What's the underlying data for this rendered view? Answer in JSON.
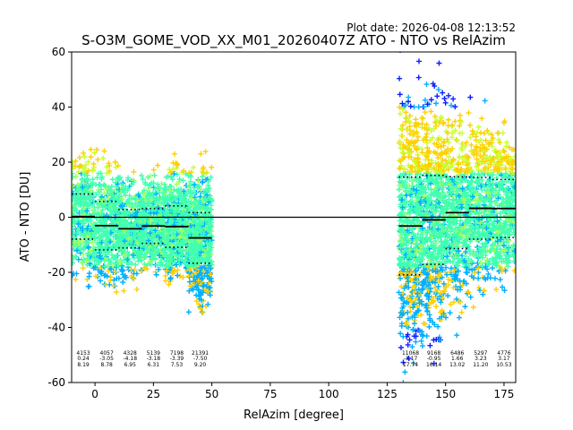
{
  "plot_date_label": "Plot date: 2026-04-08 12:13:52",
  "chart_data": {
    "type": "scatter",
    "title": "S-O3M_GOME_VOD_XX_M01_20260407Z ATO - NTO vs RelAzim",
    "xlabel": "RelAzim [degree]",
    "ylabel": "ATO - NTO [DU]",
    "xlim": [
      -10,
      180
    ],
    "ylim": [
      -60,
      60
    ],
    "xticks": [
      0,
      25,
      50,
      75,
      100,
      125,
      150,
      175
    ],
    "yticks": [
      -60,
      -40,
      -20,
      0,
      20,
      40,
      60
    ],
    "zero_line": 0,
    "grid": false,
    "marker": "+",
    "colormap": "jet",
    "bins": [
      {
        "range": [
          -10,
          0
        ],
        "count": "4153",
        "mean": "0.24",
        "std": "8.19",
        "mean_value": 0.24,
        "std_value": 8.19
      },
      {
        "range": [
          0,
          10
        ],
        "count": "4057",
        "mean": "-3.05",
        "std": "8.78",
        "mean_value": -3.05,
        "std_value": 8.78
      },
      {
        "range": [
          10,
          20
        ],
        "count": "4328",
        "mean": "-4.18",
        "std": "6.95",
        "mean_value": -4.18,
        "std_value": 6.95
      },
      {
        "range": [
          20,
          30
        ],
        "count": "5139",
        "mean": "-3.18",
        "std": "6.31",
        "mean_value": -3.18,
        "std_value": 6.31
      },
      {
        "range": [
          30,
          40
        ],
        "count": "7198",
        "mean": "-3.39",
        "std": "7.53",
        "mean_value": -3.39,
        "std_value": 7.53
      },
      {
        "range": [
          40,
          50
        ],
        "count": "21391",
        "mean": "-7.50",
        "std": "9.20",
        "mean_value": -7.5,
        "std_value": 9.2
      },
      {
        "range": [
          130,
          140
        ],
        "count": "11068",
        "mean": "-3.17",
        "std": "17.74",
        "mean_value": -3.17,
        "std_value": 17.74
      },
      {
        "range": [
          140,
          150
        ],
        "count": "9168",
        "mean": "-0.95",
        "std": "16.14",
        "mean_value": -0.95,
        "std_value": 16.14
      },
      {
        "range": [
          150,
          160
        ],
        "count": "6486",
        "mean": "1.66",
        "std": "13.02",
        "mean_value": 1.66,
        "std_value": 13.02
      },
      {
        "range": [
          160,
          170
        ],
        "count": "5297",
        "mean": "3.23",
        "std": "11.20",
        "mean_value": 3.23,
        "std_value": 11.2
      },
      {
        "range": [
          170,
          180
        ],
        "count": "4776",
        "mean": "3.17",
        "std": "10.53",
        "mean_value": 3.17,
        "std_value": 10.53
      }
    ],
    "scatter_regions": [
      {
        "x": [
          -10,
          50
        ],
        "y_center_hint": 0,
        "spread": 22
      },
      {
        "x": [
          131,
          180
        ],
        "y_center_hint": 0,
        "spread": 30
      }
    ],
    "colors": {
      "low": "#00b0ff",
      "mid": "#40ffb0",
      "high": "#ffd000",
      "extreme": "#1020ff",
      "mean_line": "#000000",
      "std_line": "#000000"
    }
  }
}
